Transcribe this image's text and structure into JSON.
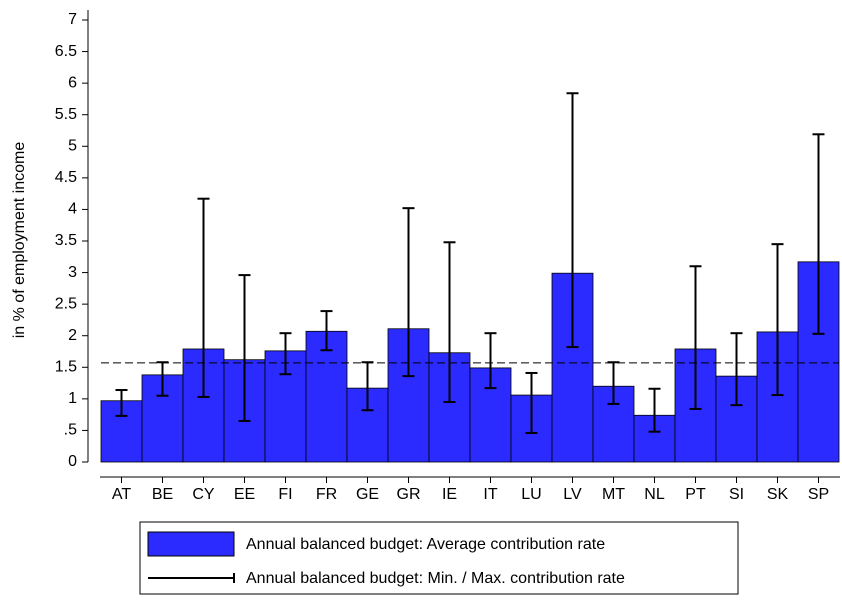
{
  "chart_data": {
    "type": "bar",
    "y_label": "in % of employment income",
    "categories": [
      "AT",
      "BE",
      "CY",
      "EE",
      "FI",
      "FR",
      "GE",
      "GR",
      "IE",
      "IT",
      "LU",
      "LV",
      "MT",
      "NL",
      "PT",
      "SI",
      "SK",
      "SP"
    ],
    "series": [
      {
        "name": "Annual balanced budget: Average contribution rate",
        "color": "#2b2bff",
        "values": [
          0.97,
          1.38,
          1.79,
          1.62,
          1.76,
          2.07,
          1.17,
          2.11,
          1.73,
          1.49,
          1.06,
          2.99,
          1.2,
          0.74,
          1.79,
          1.36,
          2.06,
          3.17
        ]
      }
    ],
    "range_name": "Annual balanced budget: Min. / Max. contribution rate",
    "min": [
      0.73,
      1.05,
      1.03,
      0.65,
      1.39,
      1.77,
      0.82,
      1.36,
      0.95,
      1.17,
      0.46,
      1.82,
      0.92,
      0.48,
      0.84,
      0.9,
      1.06,
      2.03
    ],
    "max": [
      1.14,
      1.58,
      4.17,
      2.96,
      2.04,
      2.39,
      1.58,
      4.02,
      3.48,
      2.04,
      1.41,
      5.84,
      1.58,
      1.16,
      3.1,
      2.04,
      3.45,
      5.19
    ],
    "reference_line": 1.57,
    "ylim": [
      0,
      7
    ],
    "yticks": [
      0,
      {
        "value": 0.5,
        "label": ".5"
      },
      1,
      1.5,
      2,
      2.5,
      3,
      3.5,
      4,
      4.5,
      5,
      5.5,
      6,
      6.5,
      7
    ]
  }
}
